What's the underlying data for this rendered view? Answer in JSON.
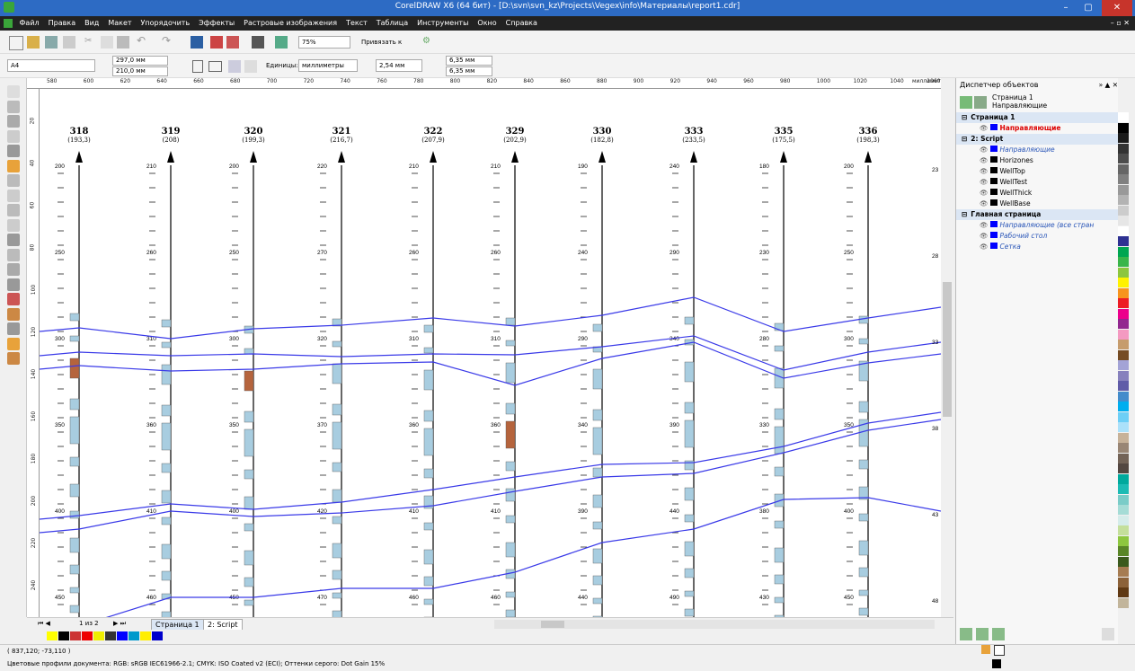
{
  "window": {
    "title": "CorelDRAW X6 (64 бит) - [D:\\svn\\svn_kz\\Projects\\Vegex\\info\\Материалы\\report1.cdr]",
    "minimize": "–",
    "restore": "▢",
    "close": "✕"
  },
  "menu": [
    "Файл",
    "Правка",
    "Вид",
    "Макет",
    "Упорядочить",
    "Эффекты",
    "Растровые изображения",
    "Текст",
    "Таблица",
    "Инструменты",
    "Окно",
    "Справка"
  ],
  "toolbar": {
    "zoom": "75%",
    "snap": "Привязать к"
  },
  "propbar": {
    "page_size": "A4",
    "width": "297,0 мм",
    "height": "210,0 мм",
    "units_label": "Единицы:",
    "units": "миллиметры",
    "nudge": "2,54 мм",
    "dup_x": "6,35 мм",
    "dup_y": "6,35 мм"
  },
  "ruler": {
    "h_ticks": [
      "580",
      "600",
      "620",
      "640",
      "660",
      "680",
      "700",
      "720",
      "740",
      "760",
      "780",
      "800",
      "820",
      "840",
      "860",
      "880",
      "900",
      "920",
      "940",
      "960",
      "980",
      "1000",
      "1020",
      "1040",
      "1060"
    ],
    "h_unit": "миллиметры",
    "v_ticks": [
      "20",
      "40",
      "60",
      "80",
      "100",
      "120",
      "140",
      "160",
      "180",
      "200",
      "220",
      "240"
    ],
    "v_unit": "миллиметры"
  },
  "wells": [
    {
      "name": "318",
      "val": "(193,3)",
      "d": [
        "200",
        "250",
        "300",
        "350",
        "400",
        "450"
      ]
    },
    {
      "name": "319",
      "val": "(208)",
      "d": [
        "210",
        "260",
        "310",
        "360",
        "410",
        "460"
      ]
    },
    {
      "name": "320",
      "val": "(199,3)",
      "d": [
        "200",
        "250",
        "300",
        "350",
        "400",
        "450"
      ]
    },
    {
      "name": "321",
      "val": "(216,7)",
      "d": [
        "220",
        "270",
        "320",
        "370",
        "420",
        "470"
      ]
    },
    {
      "name": "322",
      "val": "(207,9)",
      "d": [
        "210",
        "260",
        "310",
        "360",
        "410",
        "460"
      ]
    },
    {
      "name": "329",
      "val": "(202,9)",
      "d": [
        "210",
        "260",
        "310",
        "360",
        "410",
        "460"
      ]
    },
    {
      "name": "330",
      "val": "(182,8)",
      "d": [
        "190",
        "240",
        "290",
        "340",
        "390",
        "440"
      ]
    },
    {
      "name": "333",
      "val": "(233,5)",
      "d": [
        "240",
        "290",
        "340",
        "390",
        "440",
        "490"
      ]
    },
    {
      "name": "335",
      "val": "(175,5)",
      "d": [
        "180",
        "230",
        "280",
        "330",
        "380",
        "430"
      ]
    },
    {
      "name": "336",
      "val": "(198,3)",
      "d": [
        "200",
        "250",
        "300",
        "350",
        "400",
        "450"
      ]
    }
  ],
  "edge_labels": [
    "23",
    "28",
    "33",
    "38",
    "43",
    "48"
  ],
  "objmgr": {
    "title": "Диспетчер объектов",
    "page_name": "Страница 1",
    "page_layer": "Направляющие",
    "rows": [
      {
        "label": "Страница 1",
        "type": "header"
      },
      {
        "label": "Направляющие",
        "type": "layer-red"
      },
      {
        "label": "2: Script",
        "type": "header"
      },
      {
        "label": "Направляющие",
        "type": "layer-italic"
      },
      {
        "label": "Horizones",
        "type": "layer"
      },
      {
        "label": "WellTop",
        "type": "layer"
      },
      {
        "label": "WellTest",
        "type": "layer"
      },
      {
        "label": "WellThick",
        "type": "layer"
      },
      {
        "label": "WellBase",
        "type": "layer"
      },
      {
        "label": "Главная страница",
        "type": "header"
      },
      {
        "label": "Направляющие (все стран",
        "type": "layer-italic"
      },
      {
        "label": "Рабочий стол",
        "type": "layer-italic"
      },
      {
        "label": "Сетка",
        "type": "layer-italic"
      }
    ]
  },
  "pages": {
    "counter": "1 из 2",
    "tabs": [
      "Страница 1",
      "2: Script"
    ]
  },
  "status": {
    "coords": "( 837,120; -73,110 )",
    "profiles": "Цветовые профили документа: RGB: sRGB IEC61966-2.1; CMYK: ISO Coated v2 (ECI); Оттенки серого: Dot Gain 15%"
  },
  "colors": {
    "titlebar": "#2d6bc4",
    "menubar": "#222222",
    "horizon": "#3a3ae8",
    "fill_blue": "#a8cde0",
    "fill_brown": "#b5643d",
    "fill_yellow": "#f2d21c"
  },
  "palette": [
    "#ffffff",
    "#000000",
    "#1a1a1a",
    "#333333",
    "#4d4d4d",
    "#666666",
    "#808080",
    "#999999",
    "#b3b3b3",
    "#cccccc",
    "#e6e6e6",
    "#ffffff",
    "#2e3192",
    "#00a651",
    "#39b54a",
    "#8dc63f",
    "#fff200",
    "#f7941d",
    "#ed1c24",
    "#ec008c",
    "#92278f",
    "#f49ac1",
    "#c69c6d",
    "#754c24",
    "#a3a3d6",
    "#8781bd",
    "#605ca8",
    "#448ccb",
    "#00aeef",
    "#6dcff6",
    "#abe1fa",
    "#c7b299",
    "#998675",
    "#736357",
    "#534741",
    "#00a99d",
    "#1cbbb4",
    "#7accc8",
    "#a5dcd6",
    "#d5ecea",
    "#c4df9b",
    "#8dc63f",
    "#598527",
    "#3b5a1d",
    "#a67c52",
    "#8c6239",
    "#603913",
    "#c2b59b"
  ]
}
